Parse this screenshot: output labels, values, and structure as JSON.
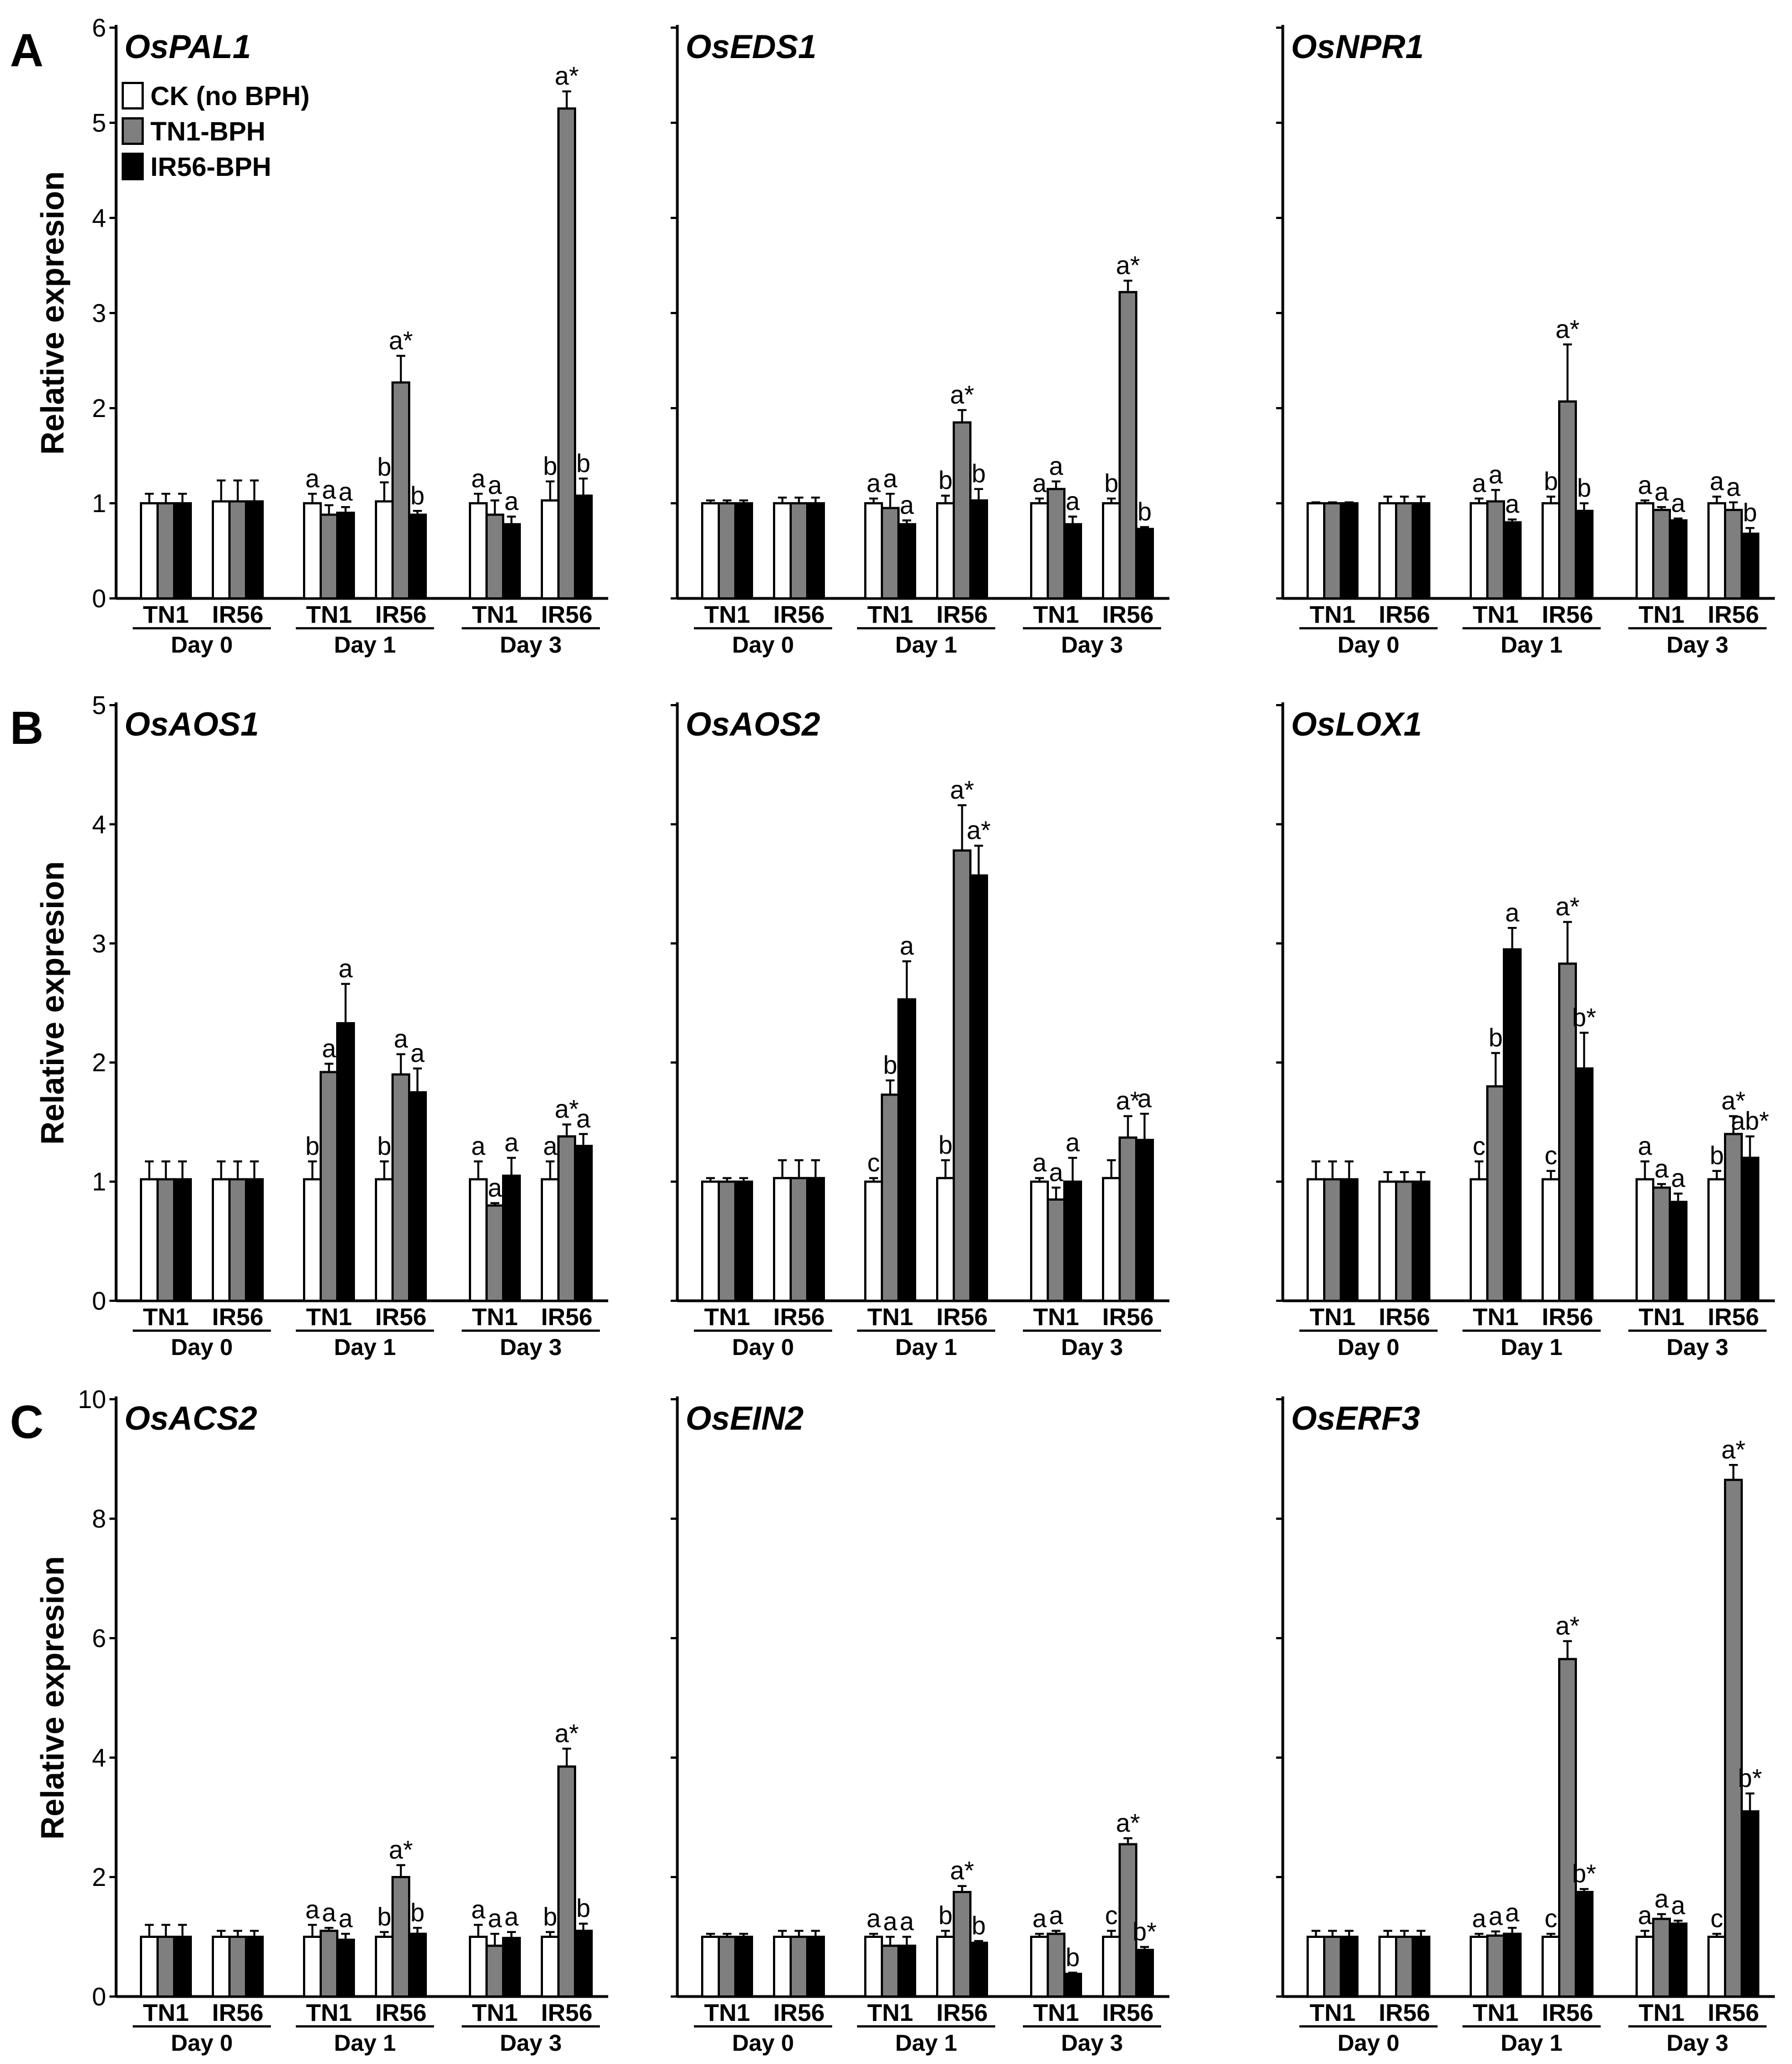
{
  "legend": {
    "entries": [
      {
        "label": "CK (no BPH)",
        "color": "#ffffff"
      },
      {
        "label": "TN1-BPH",
        "color": "#7f7f7f"
      },
      {
        "label": "IR56-BPH",
        "color": "#000000"
      }
    ]
  },
  "ylabel": "Relative expresion",
  "cultivars": [
    "TN1",
    "IR56"
  ],
  "days": [
    "Day 0",
    "Day 1",
    "Day 3"
  ],
  "rows": [
    {
      "letter": "A",
      "ylim": [
        0,
        6
      ],
      "ticks": [
        "0",
        "1",
        "2",
        "3",
        "4",
        "5",
        "6"
      ]
    },
    {
      "letter": "B",
      "ylim": [
        0,
        5
      ],
      "ticks": [
        "0",
        "1",
        "2",
        "3",
        "4",
        "5"
      ]
    },
    {
      "letter": "C",
      "ylim": [
        0,
        10
      ],
      "ticks": [
        "0",
        "2",
        "4",
        "6",
        "8",
        "10"
      ]
    }
  ],
  "chart_data": [
    {
      "type": "bar",
      "row": 0,
      "col": 0,
      "title": "OsPAL1",
      "ylim": [
        0,
        6
      ],
      "groups": [
        {
          "v": [
            1.0,
            1.0,
            1.0
          ],
          "e": [
            0.1,
            0.1,
            0.1
          ],
          "l": [
            "",
            "",
            ""
          ]
        },
        {
          "v": [
            1.02,
            1.02,
            1.02
          ],
          "e": [
            0.22,
            0.22,
            0.22
          ],
          "l": [
            "",
            "",
            ""
          ]
        },
        {
          "v": [
            1.0,
            0.88,
            0.9
          ],
          "e": [
            0.1,
            0.1,
            0.06
          ],
          "l": [
            "a",
            "a",
            "a"
          ]
        },
        {
          "v": [
            1.02,
            2.27,
            0.88
          ],
          "e": [
            0.2,
            0.28,
            0.04
          ],
          "l": [
            "b",
            "a*",
            "b"
          ]
        },
        {
          "v": [
            1.0,
            0.88,
            0.78
          ],
          "e": [
            0.1,
            0.15,
            0.08
          ],
          "l": [
            "a",
            "a",
            "a"
          ]
        },
        {
          "v": [
            1.03,
            5.15,
            1.08
          ],
          "e": [
            0.2,
            0.18,
            0.18
          ],
          "l": [
            "b",
            "a*",
            "b"
          ]
        }
      ]
    },
    {
      "type": "bar",
      "row": 0,
      "col": 1,
      "title": "OsEDS1",
      "ylim": [
        0,
        6
      ],
      "groups": [
        {
          "v": [
            1.0,
            1.0,
            1.0
          ],
          "e": [
            0.03,
            0.03,
            0.03
          ],
          "l": [
            "",
            "",
            ""
          ]
        },
        {
          "v": [
            1.0,
            1.0,
            1.0
          ],
          "e": [
            0.06,
            0.06,
            0.06
          ],
          "l": [
            "",
            "",
            ""
          ]
        },
        {
          "v": [
            1.0,
            0.95,
            0.78
          ],
          "e": [
            0.05,
            0.15,
            0.04
          ],
          "l": [
            "a",
            "a",
            "a"
          ]
        },
        {
          "v": [
            1.0,
            1.85,
            1.03
          ],
          "e": [
            0.08,
            0.13,
            0.12
          ],
          "l": [
            "b",
            "a*",
            "b"
          ]
        },
        {
          "v": [
            1.0,
            1.15,
            0.78
          ],
          "e": [
            0.05,
            0.08,
            0.08
          ],
          "l": [
            "a",
            "a",
            "a"
          ]
        },
        {
          "v": [
            1.0,
            3.22,
            0.73
          ],
          "e": [
            0.05,
            0.12,
            0.02
          ],
          "l": [
            "b",
            "a*",
            "b"
          ]
        }
      ]
    },
    {
      "type": "bar",
      "row": 0,
      "col": 2,
      "title": "OsNPR1",
      "ylim": [
        0,
        6
      ],
      "groups": [
        {
          "v": [
            1.0,
            1.0,
            1.0
          ],
          "e": [
            0.01,
            0.01,
            0.01
          ],
          "l": [
            "",
            "",
            ""
          ]
        },
        {
          "v": [
            1.0,
            1.0,
            1.0
          ],
          "e": [
            0.07,
            0.07,
            0.07
          ],
          "l": [
            "",
            "",
            ""
          ]
        },
        {
          "v": [
            1.0,
            1.02,
            0.8
          ],
          "e": [
            0.05,
            0.12,
            0.03
          ],
          "l": [
            "a",
            "a",
            "a"
          ]
        },
        {
          "v": [
            1.0,
            2.07,
            0.92
          ],
          "e": [
            0.07,
            0.6,
            0.08
          ],
          "l": [
            "b",
            "a*",
            "b"
          ]
        },
        {
          "v": [
            1.0,
            0.93,
            0.82
          ],
          "e": [
            0.03,
            0.03,
            0.02
          ],
          "l": [
            "a",
            "a",
            "a"
          ]
        },
        {
          "v": [
            1.0,
            0.93,
            0.68
          ],
          "e": [
            0.07,
            0.08,
            0.06
          ],
          "l": [
            "a",
            "a",
            "b"
          ]
        }
      ]
    },
    {
      "type": "bar",
      "row": 1,
      "col": 0,
      "title": "OsAOS1",
      "ylim": [
        0,
        5
      ],
      "groups": [
        {
          "v": [
            1.02,
            1.02,
            1.02
          ],
          "e": [
            0.15,
            0.15,
            0.15
          ],
          "l": [
            "",
            "",
            ""
          ]
        },
        {
          "v": [
            1.02,
            1.02,
            1.02
          ],
          "e": [
            0.15,
            0.15,
            0.15
          ],
          "l": [
            "",
            "",
            ""
          ]
        },
        {
          "v": [
            1.02,
            1.92,
            2.33
          ],
          "e": [
            0.15,
            0.07,
            0.33
          ],
          "l": [
            "b",
            "a",
            "a"
          ]
        },
        {
          "v": [
            1.02,
            1.9,
            1.75
          ],
          "e": [
            0.15,
            0.17,
            0.2
          ],
          "l": [
            "b",
            "a",
            "a"
          ]
        },
        {
          "v": [
            1.02,
            0.8,
            1.05
          ],
          "e": [
            0.15,
            0.02,
            0.15
          ],
          "l": [
            "a",
            "a",
            "a"
          ]
        },
        {
          "v": [
            1.02,
            1.38,
            1.3
          ],
          "e": [
            0.15,
            0.1,
            0.1
          ],
          "l": [
            "a",
            "a*",
            "a"
          ]
        }
      ]
    },
    {
      "type": "bar",
      "row": 1,
      "col": 1,
      "title": "OsAOS2",
      "ylim": [
        0,
        5
      ],
      "groups": [
        {
          "v": [
            1.0,
            1.0,
            1.0
          ],
          "e": [
            0.03,
            0.03,
            0.03
          ],
          "l": [
            "",
            "",
            ""
          ]
        },
        {
          "v": [
            1.03,
            1.03,
            1.03
          ],
          "e": [
            0.15,
            0.15,
            0.15
          ],
          "l": [
            "",
            "",
            ""
          ]
        },
        {
          "v": [
            1.0,
            1.73,
            2.53
          ],
          "e": [
            0.03,
            0.12,
            0.32
          ],
          "l": [
            "c",
            "b",
            "a"
          ]
        },
        {
          "v": [
            1.03,
            3.78,
            3.57
          ],
          "e": [
            0.15,
            0.38,
            0.25
          ],
          "l": [
            "b",
            "a*",
            "a*"
          ]
        },
        {
          "v": [
            1.0,
            0.85,
            1.0
          ],
          "e": [
            0.03,
            0.1,
            0.2
          ],
          "l": [
            "a",
            "a",
            "a"
          ]
        },
        {
          "v": [
            1.03,
            1.37,
            1.35
          ],
          "e": [
            0.15,
            0.18,
            0.22
          ],
          "l": [
            "",
            "a*",
            "a"
          ]
        }
      ]
    },
    {
      "type": "bar",
      "row": 1,
      "col": 2,
      "title": "OsLOX1",
      "ylim": [
        0,
        5
      ],
      "groups": [
        {
          "v": [
            1.02,
            1.02,
            1.02
          ],
          "e": [
            0.15,
            0.15,
            0.15
          ],
          "l": [
            "",
            "",
            ""
          ]
        },
        {
          "v": [
            1.0,
            1.0,
            1.0
          ],
          "e": [
            0.08,
            0.08,
            0.08
          ],
          "l": [
            "",
            "",
            ""
          ]
        },
        {
          "v": [
            1.02,
            1.8,
            2.95
          ],
          "e": [
            0.15,
            0.28,
            0.18
          ],
          "l": [
            "c",
            "b",
            "a"
          ]
        },
        {
          "v": [
            1.02,
            2.83,
            1.95
          ],
          "e": [
            0.07,
            0.35,
            0.3
          ],
          "l": [
            "c",
            "a*",
            "b*"
          ]
        },
        {
          "v": [
            1.02,
            0.95,
            0.83
          ],
          "e": [
            0.15,
            0.03,
            0.07
          ],
          "l": [
            "a",
            "a",
            "a"
          ]
        },
        {
          "v": [
            1.02,
            1.4,
            1.2
          ],
          "e": [
            0.07,
            0.15,
            0.18
          ],
          "l": [
            "b",
            "a*",
            "ab*"
          ]
        }
      ]
    },
    {
      "type": "bar",
      "row": 2,
      "col": 0,
      "title": "OsACS2",
      "ylim": [
        0,
        10
      ],
      "groups": [
        {
          "v": [
            1.0,
            1.0,
            1.0
          ],
          "e": [
            0.2,
            0.2,
            0.2
          ],
          "l": [
            "",
            "",
            ""
          ]
        },
        {
          "v": [
            1.0,
            1.0,
            1.0
          ],
          "e": [
            0.1,
            0.1,
            0.1
          ],
          "l": [
            "",
            "",
            ""
          ]
        },
        {
          "v": [
            1.0,
            1.1,
            0.95
          ],
          "e": [
            0.2,
            0.05,
            0.1
          ],
          "l": [
            "a",
            "a",
            "a"
          ]
        },
        {
          "v": [
            1.0,
            2.0,
            1.05
          ],
          "e": [
            0.08,
            0.2,
            0.1
          ],
          "l": [
            "b",
            "a*",
            "b"
          ]
        },
        {
          "v": [
            1.0,
            0.85,
            0.98
          ],
          "e": [
            0.2,
            0.2,
            0.1
          ],
          "l": [
            "a",
            "a",
            "a"
          ]
        },
        {
          "v": [
            1.0,
            3.85,
            1.1
          ],
          "e": [
            0.08,
            0.3,
            0.12
          ],
          "l": [
            "b",
            "a*",
            "b"
          ]
        }
      ]
    },
    {
      "type": "bar",
      "row": 2,
      "col": 1,
      "title": "OsEIN2",
      "ylim": [
        0,
        10
      ],
      "groups": [
        {
          "v": [
            1.0,
            1.0,
            1.0
          ],
          "e": [
            0.05,
            0.05,
            0.05
          ],
          "l": [
            "",
            "",
            ""
          ]
        },
        {
          "v": [
            1.0,
            1.0,
            1.0
          ],
          "e": [
            0.1,
            0.1,
            0.1
          ],
          "l": [
            "",
            "",
            ""
          ]
        },
        {
          "v": [
            1.0,
            0.85,
            0.85
          ],
          "e": [
            0.05,
            0.15,
            0.15
          ],
          "l": [
            "a",
            "a",
            "a"
          ]
        },
        {
          "v": [
            1.0,
            1.75,
            0.9
          ],
          "e": [
            0.1,
            0.1,
            0.03
          ],
          "l": [
            "b",
            "a*",
            "b"
          ]
        },
        {
          "v": [
            1.0,
            1.05,
            0.38
          ],
          "e": [
            0.05,
            0.05,
            0.02
          ],
          "l": [
            "a",
            "a",
            "b"
          ]
        },
        {
          "v": [
            1.0,
            2.55,
            0.78
          ],
          "e": [
            0.1,
            0.1,
            0.05
          ],
          "l": [
            "c",
            "a*",
            "b*"
          ]
        }
      ]
    },
    {
      "type": "bar",
      "row": 2,
      "col": 2,
      "title": "OsERF3",
      "ylim": [
        0,
        10
      ],
      "groups": [
        {
          "v": [
            1.0,
            1.0,
            1.0
          ],
          "e": [
            0.1,
            0.1,
            0.1
          ],
          "l": [
            "",
            "",
            ""
          ]
        },
        {
          "v": [
            1.0,
            1.0,
            1.0
          ],
          "e": [
            0.1,
            0.1,
            0.1
          ],
          "l": [
            "",
            "",
            ""
          ]
        },
        {
          "v": [
            1.0,
            1.02,
            1.05
          ],
          "e": [
            0.05,
            0.07,
            0.1
          ],
          "l": [
            "a",
            "a",
            "a"
          ]
        },
        {
          "v": [
            1.0,
            5.65,
            1.75
          ],
          "e": [
            0.05,
            0.3,
            0.05
          ],
          "l": [
            "c",
            "a*",
            "b*"
          ]
        },
        {
          "v": [
            1.0,
            1.3,
            1.22
          ],
          "e": [
            0.1,
            0.08,
            0.05
          ],
          "l": [
            "a",
            "a",
            "a"
          ]
        },
        {
          "v": [
            1.0,
            8.65,
            3.1
          ],
          "e": [
            0.05,
            0.25,
            0.3
          ],
          "l": [
            "c",
            "a*",
            "b*"
          ]
        }
      ]
    }
  ]
}
